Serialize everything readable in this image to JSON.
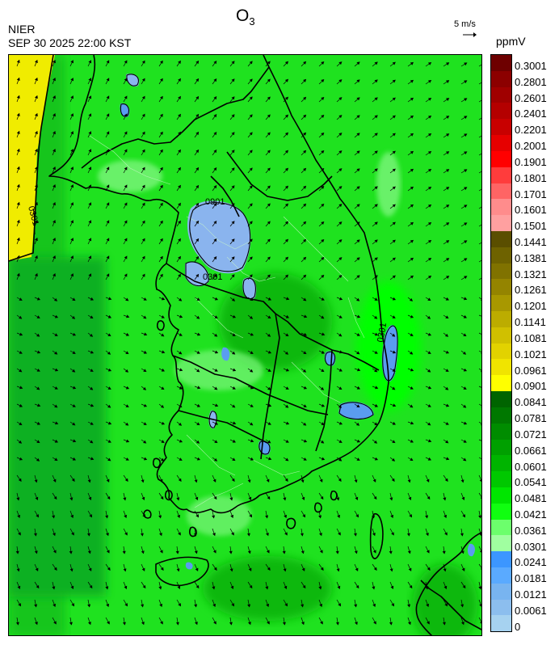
{
  "header": {
    "title_main": "O",
    "title_sub": "3",
    "agency": "NIER",
    "timestamp": "SEP 30 2025 22:00 KST",
    "wind_reference": "5 m/s",
    "units": "ppmV"
  },
  "colorbar": {
    "labels": [
      "0.3001",
      "0.2801",
      "0.2601",
      "0.2401",
      "0.2201",
      "0.2001",
      "0.1901",
      "0.1801",
      "0.1701",
      "0.1601",
      "0.1501",
      "0.1441",
      "0.1381",
      "0.1321",
      "0.1261",
      "0.1201",
      "0.1141",
      "0.1081",
      "0.1021",
      "0.0961",
      "0.0901",
      "0.0841",
      "0.0781",
      "0.0721",
      "0.0661",
      "0.0601",
      "0.0541",
      "0.0481",
      "0.0421",
      "0.0361",
      "0.0301",
      "0.0241",
      "0.0181",
      "0.0121",
      "0.0061",
      "0"
    ],
    "colors": [
      "#6e0000",
      "#8c0000",
      "#a00000",
      "#b40000",
      "#c80000",
      "#e60000",
      "#ff0000",
      "#ff3c3c",
      "#ff6464",
      "#ff8c8c",
      "#ffa0a0",
      "#5a4e00",
      "#6e6200",
      "#807200",
      "#948400",
      "#a89800",
      "#bcac00",
      "#d0c000",
      "#e2d200",
      "#f0e400",
      "#ffff00",
      "#006400",
      "#007800",
      "#008c00",
      "#00a000",
      "#00b400",
      "#00c800",
      "#00e600",
      "#10ff10",
      "#6cff6c",
      "#a0ffa0",
      "#3c96ff",
      "#5aaaff",
      "#78b4f0",
      "#8cbeee",
      "#a6d2f0"
    ]
  },
  "map": {
    "contour_labels": [
      "0901",
      "0301",
      "0301",
      "0301",
      "0301"
    ],
    "region_colors": {
      "sea_base": "#1fe21f",
      "sea_dark": "#14cc14",
      "land_base": "#2ee62e",
      "land_dark": "#10b810",
      "bright": "#00ff00",
      "light_green": "#7cf57c",
      "low_blue": "#8ab4ee",
      "blue": "#5a9cf0",
      "yellow": "#f0ec00",
      "deep_green": "#0a9a2a"
    }
  }
}
